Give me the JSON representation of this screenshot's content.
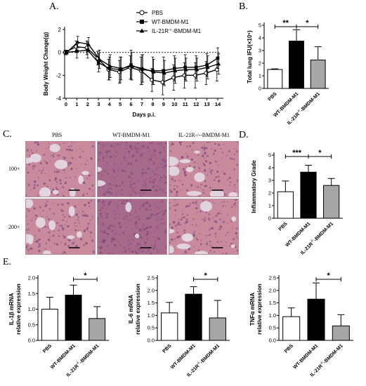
{
  "panels": {
    "a": "A.",
    "b": "B.",
    "c": "C.",
    "d": "D.",
    "e": "E."
  },
  "colors": {
    "pbs": "#ffffff",
    "wt": "#000000",
    "ko": "#a6a6a6",
    "tissue_pink": "#c98a9e",
    "tissue_purple": "#7a4a78",
    "alveoli": "#e4dce6"
  },
  "microscopy": {
    "columns": [
      "PBS",
      "WT-BMDM-M1",
      "IL-21R-/--BMDM-M1"
    ],
    "rows": [
      "100×",
      "200×"
    ]
  },
  "chart_data": [
    {
      "id": "A",
      "type": "line",
      "ylabel": "Body Weight Change(g)",
      "xlabel": "Days p.i.",
      "x": [
        0,
        1,
        2,
        3,
        4,
        5,
        6,
        7,
        8,
        9,
        10,
        11,
        12,
        13,
        14
      ],
      "xlim": [
        0,
        14
      ],
      "ylim": [
        -4,
        2
      ],
      "yticks": [
        2,
        0,
        -2,
        -4
      ],
      "baseline": 0,
      "legend_position": "top-right",
      "series": [
        {
          "name": "PBS",
          "marker": "open-circle",
          "values": [
            0,
            0.5,
            0.4,
            -0.5,
            -1.5,
            -1.7,
            -1.3,
            -1.6,
            -2.4,
            -2.6,
            -2.2,
            -2.0,
            -2.0,
            -1.8,
            -1.5
          ],
          "error": [
            0.2,
            0.5,
            0.6,
            0.6,
            0.9,
            1.0,
            1.0,
            1.2,
            1.0,
            1.1,
            1.1,
            1.1,
            1.1,
            1.0,
            1.0
          ]
        },
        {
          "name": "WT-BMDM-M1",
          "marker": "filled-square",
          "values": [
            0,
            0.1,
            0.2,
            -0.9,
            -1.4,
            -1.5,
            -1.1,
            -1.5,
            -1.6,
            -1.6,
            -1.4,
            -1.3,
            -1.3,
            -1.1,
            -0.5
          ],
          "error": [
            0.2,
            0.6,
            0.7,
            0.8,
            1.0,
            1.1,
            1.3,
            1.3,
            1.2,
            1.2,
            1.1,
            1.1,
            1.0,
            1.0,
            0.9
          ]
        },
        {
          "name": "IL-21R-/--BMDM-M1",
          "marker": "filled-triangle",
          "values": [
            0,
            0.9,
            0.7,
            -0.6,
            -1.2,
            -1.4,
            -1.2,
            -1.4,
            -1.7,
            -1.8,
            -1.6,
            -1.5,
            -1.5,
            -1.3,
            -1.0
          ],
          "error": [
            0.2,
            0.5,
            0.6,
            0.8,
            1.0,
            1.0,
            1.2,
            1.2,
            1.1,
            1.1,
            1.1,
            1.0,
            1.0,
            1.0,
            0.9
          ]
        }
      ]
    },
    {
      "id": "B",
      "type": "bar",
      "ylabel": "Total lung IFU(×10⁵)",
      "categories": [
        "PBS",
        "WT-BMDM-M1",
        "IL-21R-/--BMDM-M1"
      ],
      "values": [
        1.5,
        3.75,
        2.25
      ],
      "error": [
        0.05,
        0.9,
        1.05
      ],
      "ylim": [
        0,
        5
      ],
      "yticks": [
        0,
        1,
        2,
        3,
        4,
        5
      ],
      "significance": [
        {
          "from": 0,
          "to": 1,
          "label": "**"
        },
        {
          "from": 1,
          "to": 2,
          "label": "*"
        }
      ]
    },
    {
      "id": "D",
      "type": "bar",
      "ylabel": "Inflammatory Grade",
      "categories": [
        "PBS",
        "WT-BMDM-M1",
        "IL-21R-/--BMDM-M1"
      ],
      "values": [
        2.1,
        3.65,
        2.6
      ],
      "error": [
        0.85,
        0.55,
        0.55
      ],
      "ylim": [
        0,
        5
      ],
      "yticks": [
        0,
        1,
        2,
        3,
        4,
        5
      ],
      "significance": [
        {
          "from": 0,
          "to": 1,
          "label": "***"
        },
        {
          "from": 1,
          "to": 2,
          "label": "*"
        }
      ]
    },
    {
      "id": "E1",
      "type": "bar",
      "ylabel": "IL-1β mRNA relative expression",
      "categories": [
        "PBS",
        "WT-BMDM-M1",
        "IL-21R-/--BMDM-M1"
      ],
      "values": [
        1.0,
        1.45,
        0.7
      ],
      "error": [
        0.38,
        0.32,
        0.38
      ],
      "ylim": [
        0,
        2.0
      ],
      "yticks": [
        0,
        0.5,
        1.0,
        1.5,
        2.0
      ],
      "significance": [
        {
          "from": 1,
          "to": 2,
          "label": "*"
        }
      ]
    },
    {
      "id": "E2",
      "type": "bar",
      "ylabel": "IL-6 mRNA relative expression",
      "categories": [
        "PBS",
        "WT-BMDM-M1",
        "IL-21R-/--BMDM-M1"
      ],
      "values": [
        1.1,
        1.85,
        0.9
      ],
      "error": [
        0.42,
        0.3,
        0.7
      ],
      "ylim": [
        0,
        2.5
      ],
      "yticks": [
        0,
        0.5,
        1.0,
        1.5,
        2.0,
        2.5
      ],
      "significance": [
        {
          "from": 1,
          "to": 2,
          "label": "*"
        }
      ]
    },
    {
      "id": "E3",
      "type": "bar",
      "ylabel": "TNFα mRNA relative expression",
      "categories": [
        "PBS",
        "WT-BMDM-M1",
        "IL-21R-/--BMDM-M1"
      ],
      "values": [
        0.95,
        1.65,
        0.58
      ],
      "error": [
        0.35,
        0.65,
        0.45
      ],
      "ylim": [
        0,
        2.5
      ],
      "yticks": [
        0,
        0.5,
        1.0,
        1.5,
        2.0,
        2.5
      ],
      "significance": [
        {
          "from": 1,
          "to": 2,
          "label": "*"
        }
      ]
    }
  ]
}
